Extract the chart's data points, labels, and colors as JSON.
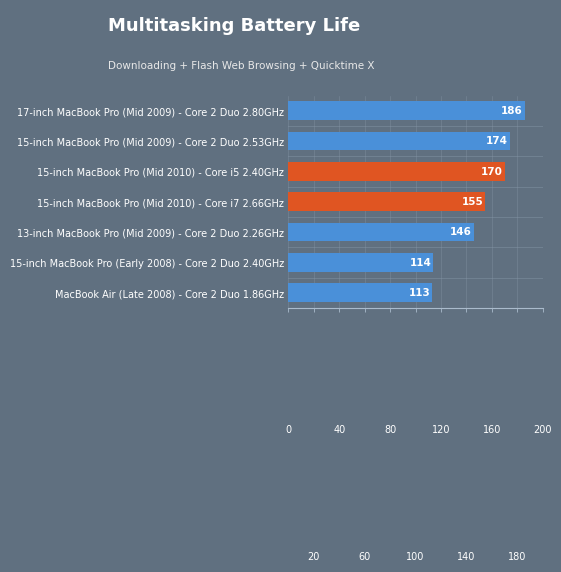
{
  "title": "Multitasking Battery Life",
  "subtitle": "Downloading + Flash Web Browsing + Quicktime X",
  "categories": [
    "17-inch MacBook Pro (Mid 2009) - Core 2 Duo 2.80GHz",
    "15-inch MacBook Pro (Mid 2009) - Core 2 Duo 2.53GHz",
    "15-inch MacBook Pro (Mid 2010) - Core i5 2.40GHz",
    "15-inch MacBook Pro (Mid 2010) - Core i7 2.66GHz",
    "13-inch MacBook Pro (Mid 2009) - Core 2 Duo 2.26GHz",
    "15-inch MacBook Pro (Early 2008) - Core 2 Duo 2.40GHz",
    "MacBook Air (Late 2008) - Core 2 Duo 1.86GHz"
  ],
  "values": [
    186,
    174,
    170,
    155,
    146,
    114,
    113
  ],
  "bar_colors": [
    "#4a90d9",
    "#4a90d9",
    "#e05522",
    "#e05522",
    "#4a90d9",
    "#4a90d9",
    "#4a90d9"
  ],
  "header_bg": "#d4940a",
  "chart_bg": "#607080",
  "plot_bg": "#607080",
  "title_color": "#ffffff",
  "subtitle_color": "#e8e8e8",
  "label_color": "#ffffff",
  "value_color": "#ffffff",
  "tick_color": "#ffffff",
  "xlim": [
    0,
    200
  ],
  "row1_vals": [
    0,
    40,
    80,
    120,
    160,
    200
  ],
  "row2_vals": [
    20,
    60,
    100,
    140,
    180
  ],
  "title_fontsize": 13,
  "subtitle_fontsize": 7.5,
  "label_fontsize": 7,
  "value_fontsize": 7.5,
  "tick_fontsize": 7
}
